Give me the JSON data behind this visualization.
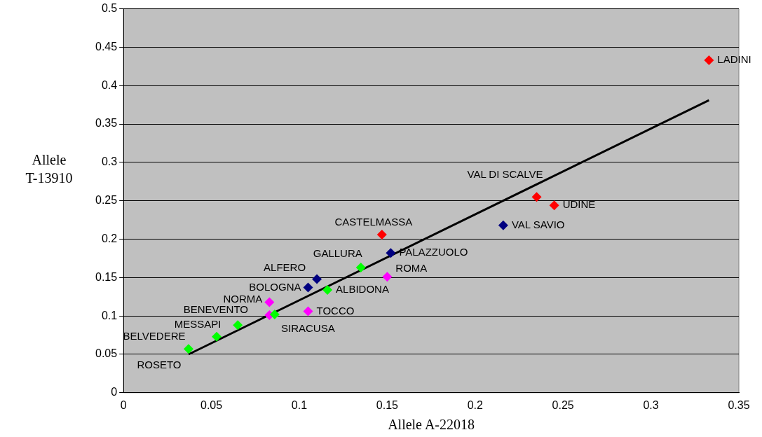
{
  "chart_data": {
    "type": "scatter",
    "xlabel": "Allele A-22018",
    "ylabel": "Allele T-13910",
    "xlim": [
      0,
      0.35
    ],
    "xticks": [
      0,
      0.05,
      0.1,
      0.15,
      0.2,
      0.25,
      0.3,
      0.35
    ],
    "ylim": [
      0,
      0.5
    ],
    "yticks": [
      0,
      0.05,
      0.1,
      0.15,
      0.2,
      0.25,
      0.3,
      0.35,
      0.4,
      0.45,
      0.5
    ],
    "grid": "y",
    "legend": false,
    "marker": "diamond",
    "series": [
      {
        "color": "#ff0000",
        "x": [
          0.333,
          0.235,
          0.245,
          0.147
        ],
        "values": [
          0.433,
          0.255,
          0.244,
          0.206
        ]
      },
      {
        "color": "#000080",
        "x": [
          0.216,
          0.152,
          0.11,
          0.105
        ],
        "values": [
          0.218,
          0.182,
          0.148,
          0.137
        ]
      },
      {
        "color": "#00ff00",
        "x": [
          0.135,
          0.116,
          0.086,
          0.065,
          0.053,
          0.037
        ],
        "values": [
          0.163,
          0.134,
          0.102,
          0.088,
          0.073,
          0.057
        ]
      },
      {
        "color": "#ff00ff",
        "x": [
          0.15,
          0.105,
          0.083,
          0.083
        ],
        "values": [
          0.151,
          0.106,
          0.118,
          0.101
        ]
      },
      {
        "type": "line",
        "color": "#000000",
        "marker": "none",
        "x": [
          0.037,
          0.333
        ],
        "values": [
          0.05,
          0.381
        ]
      }
    ],
    "annotations": [
      {
        "text": "LADINI",
        "x": 0.333,
        "y": 0.433
      },
      {
        "text": "VAL DI SCALVE",
        "x": 0.235,
        "y": 0.255
      },
      {
        "text": "UDINE",
        "x": 0.245,
        "y": 0.244
      },
      {
        "text": "VAL SAVIO",
        "x": 0.216,
        "y": 0.218
      },
      {
        "text": "CASTELMASSA",
        "x": 0.147,
        "y": 0.206
      },
      {
        "text": "PALAZZUOLO",
        "x": 0.152,
        "y": 0.182
      },
      {
        "text": "GALLURA",
        "x": 0.135,
        "y": 0.163
      },
      {
        "text": "ROMA",
        "x": 0.15,
        "y": 0.151
      },
      {
        "text": "ALFERO",
        "x": 0.11,
        "y": 0.148
      },
      {
        "text": "BOLOGNA",
        "x": 0.105,
        "y": 0.137
      },
      {
        "text": "ALBIDONA",
        "x": 0.116,
        "y": 0.134
      },
      {
        "text": "TOCCO",
        "x": 0.105,
        "y": 0.106
      },
      {
        "text": "NORMA",
        "x": 0.083,
        "y": 0.118
      },
      {
        "text": "BENEVENTO",
        "x": 0.086,
        "y": 0.102
      },
      {
        "text": "SIRACUSA",
        "x": 0.083,
        "y": 0.101
      },
      {
        "text": "MESSAPI",
        "x": 0.065,
        "y": 0.088
      },
      {
        "text": "BELVEDERE",
        "x": 0.053,
        "y": 0.073
      },
      {
        "text": "ROSETO",
        "x": 0.037,
        "y": 0.057
      }
    ]
  }
}
